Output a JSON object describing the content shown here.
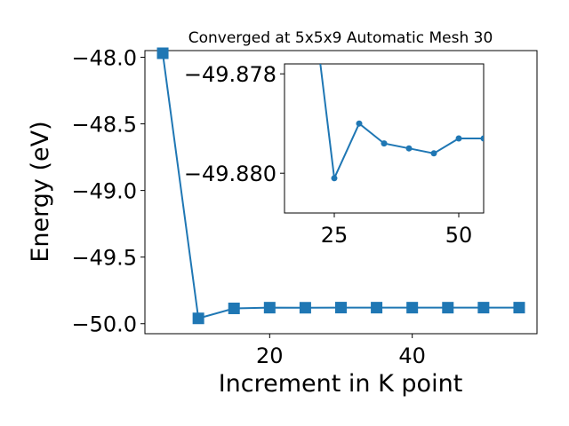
{
  "chart_data": [
    {
      "type": "line",
      "title": "Converged at 5x5x9 Automatic Mesh 30",
      "xlabel": "Increment in K point",
      "ylabel": "Energy (eV)",
      "xlim": [
        2.5,
        57.5
      ],
      "ylim": [
        -50.075,
        -47.95
      ],
      "xticks": [
        20,
        40
      ],
      "yticks": [
        -48.0,
        -48.5,
        -49.0,
        -49.5,
        -50.0
      ],
      "xtick_labels": [
        "20",
        "40"
      ],
      "ytick_labels": [
        "−48.0",
        "−48.5",
        "−49.0",
        "−49.5",
        "−50.0"
      ],
      "marker": "square",
      "color": "#1f77b4",
      "grid": false,
      "series": [
        {
          "x": [
            5,
            10,
            15,
            20,
            25,
            30,
            35,
            40,
            45,
            50,
            55
          ],
          "values": [
            -47.97,
            -49.96,
            -49.885,
            -49.8795,
            -49.8801,
            -49.879,
            -49.8794,
            -49.8795,
            -49.8796,
            -49.8793,
            -49.8793
          ]
        }
      ]
    },
    {
      "type": "line",
      "title": "",
      "inset": true,
      "xlim": [
        15,
        55
      ],
      "ylim": [
        -49.8808,
        -49.8778
      ],
      "xticks": [
        25,
        50
      ],
      "yticks": [
        -49.88,
        -49.878
      ],
      "xtick_labels": [
        "25",
        "50"
      ],
      "ytick_labels": [
        "−49.880",
        "−49.878"
      ],
      "marker": "circle",
      "color": "#1f77b4",
      "grid": false,
      "series": [
        {
          "x": [
            25,
            30,
            35,
            40,
            45,
            50,
            55
          ],
          "values": [
            -49.8801,
            -49.879,
            -49.8794,
            -49.8795,
            -49.8796,
            -49.8793,
            -49.8793
          ],
          "lead_in": {
            "x": 22.2,
            "y": -49.8778
          }
        }
      ]
    }
  ]
}
